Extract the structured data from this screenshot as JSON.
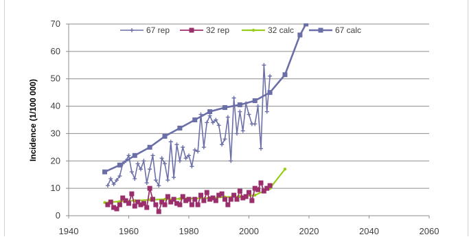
{
  "chart_data": {
    "type": "line",
    "title": "",
    "xlabel": "",
    "ylabel": "Incidence (1/100 000)",
    "xlim": [
      1940,
      2060
    ],
    "ylim": [
      0,
      70
    ],
    "x_ticks": [
      1940,
      1960,
      1980,
      2000,
      2020,
      2040,
      2060
    ],
    "y_ticks": [
      0,
      10,
      20,
      30,
      40,
      50,
      60,
      70
    ],
    "grid": "horizontal",
    "legend_position": "top",
    "series": [
      {
        "name": "67 rep",
        "color": "#6b6fa8",
        "marker": "plus",
        "x": [
          1953,
          1954,
          1955,
          1956,
          1957,
          1958,
          1959,
          1960,
          1961,
          1962,
          1963,
          1964,
          1965,
          1966,
          1967,
          1968,
          1969,
          1970,
          1971,
          1972,
          1973,
          1974,
          1975,
          1976,
          1977,
          1978,
          1979,
          1980,
          1981,
          1982,
          1983,
          1984,
          1985,
          1986,
          1987,
          1988,
          1989,
          1990,
          1991,
          1992,
          1993,
          1994,
          1995,
          1996,
          1997,
          1998,
          1999,
          2000,
          2001,
          2002,
          2003,
          2004,
          2005,
          2006,
          2007
        ],
        "values": [
          11,
          13.5,
          11.5,
          13,
          14.5,
          19,
          20,
          22,
          16,
          13.5,
          19,
          17,
          20,
          12,
          17,
          22,
          13,
          11,
          21,
          19,
          13,
          27,
          14,
          26,
          20,
          25,
          21,
          22,
          18,
          24,
          23.5,
          37,
          25,
          34,
          36.5,
          34,
          35,
          33,
          26,
          28,
          36,
          20,
          43,
          30,
          38,
          31,
          41,
          37,
          33.5,
          33.5,
          40,
          24.5,
          55,
          38,
          51
        ]
      },
      {
        "name": "32 rep",
        "color": "#9a2f6b",
        "marker": "square",
        "x": [
          1953,
          1954,
          1955,
          1956,
          1957,
          1958,
          1959,
          1960,
          1961,
          1962,
          1963,
          1964,
          1965,
          1966,
          1967,
          1968,
          1969,
          1970,
          1971,
          1972,
          1973,
          1974,
          1975,
          1976,
          1977,
          1978,
          1979,
          1980,
          1981,
          1982,
          1983,
          1984,
          1985,
          1986,
          1987,
          1988,
          1989,
          1990,
          1991,
          1992,
          1993,
          1994,
          1995,
          1996,
          1997,
          1998,
          1999,
          2000,
          2001,
          2002,
          2003,
          2004,
          2005,
          2006,
          2007
        ],
        "values": [
          4,
          5,
          3,
          2.5,
          4,
          6.5,
          5.5,
          4.5,
          8,
          3.5,
          5,
          4,
          4.5,
          3,
          10,
          6,
          4,
          1.5,
          5,
          4,
          7,
          5,
          6,
          4.5,
          4,
          7,
          5.5,
          6,
          4,
          6,
          4,
          7.5,
          5.5,
          8.5,
          6,
          6.5,
          5.5,
          7.5,
          8,
          6,
          4,
          6,
          7.5,
          6,
          9,
          6.5,
          7,
          8.5,
          5.5,
          10,
          9.5,
          12,
          9,
          10,
          11
        ]
      },
      {
        "name": "32 calc",
        "color": "#99cc1a",
        "marker": "dot",
        "x": [
          1952,
          1957,
          1962,
          1967,
          1972,
          1977,
          1982,
          1987,
          1992,
          1997,
          2002,
          2007,
          2012
        ],
        "values": [
          4.8,
          5.2,
          5.5,
          5.8,
          6.0,
          6.2,
          6.3,
          6.5,
          6.8,
          7.0,
          7.5,
          10,
          17
        ]
      },
      {
        "name": "67 calc",
        "color": "#6b6fa8",
        "marker": "square",
        "x": [
          1952,
          1957,
          1962,
          1967,
          1972,
          1977,
          1982,
          1987,
          1992,
          1997,
          2002,
          2007,
          2012,
          2017,
          2019
        ],
        "values": [
          16,
          18.5,
          22,
          25,
          29,
          32,
          35,
          38,
          39.5,
          40.5,
          42,
          45,
          51.5,
          66,
          70
        ]
      }
    ]
  }
}
